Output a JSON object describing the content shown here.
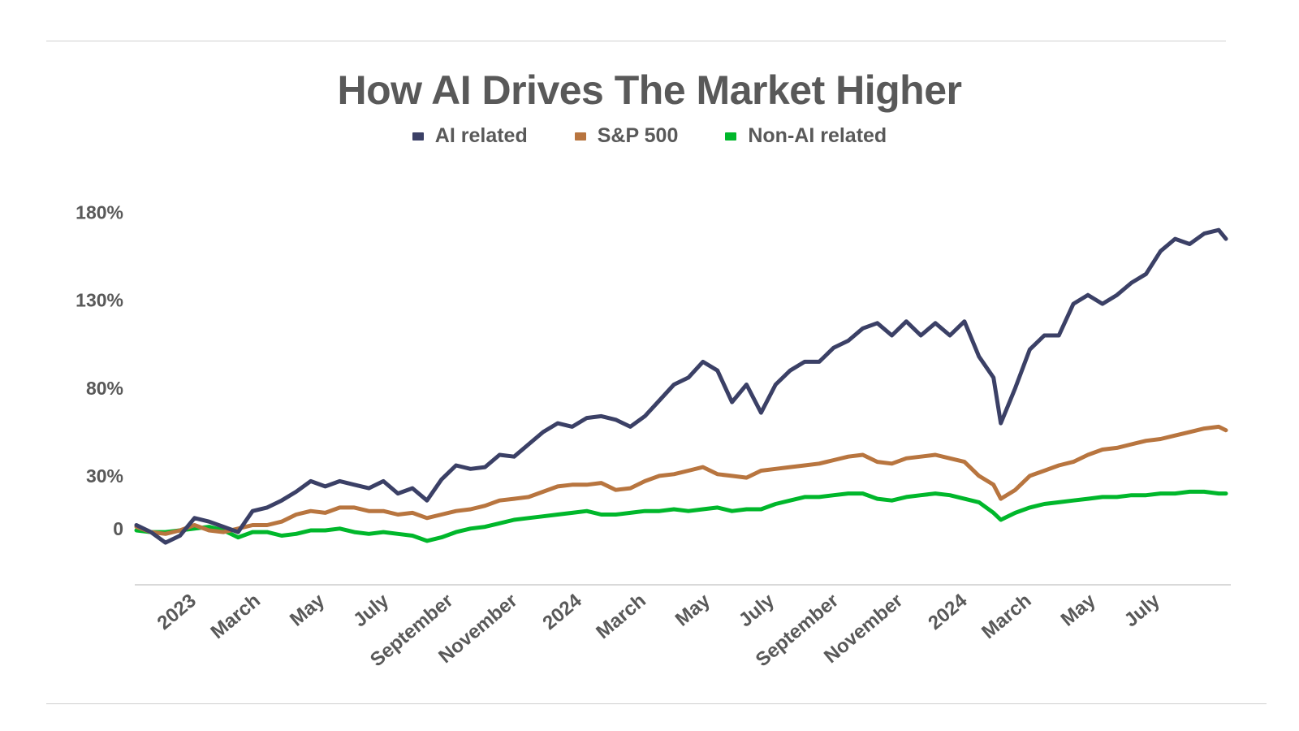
{
  "chart_data": {
    "type": "line",
    "title": "How AI Drives The Market Higher",
    "xlabel": "",
    "ylabel": "",
    "ylim": [
      -32,
      190
    ],
    "y_ticks": [
      "0",
      "30%",
      "80%",
      "130%",
      "180%"
    ],
    "y_tick_values": [
      0,
      30,
      80,
      130,
      180
    ],
    "x_tick_labels": [
      "2023",
      "March",
      "May",
      "July",
      "September",
      "November",
      "2024",
      "March",
      "May",
      "July",
      "September",
      "November",
      "2024",
      "March",
      "May",
      "July"
    ],
    "grid": false,
    "legend_position": "top",
    "x": [
      "2022-12-30",
      "2023-01-13",
      "2023-01-27",
      "2023-02-10",
      "2023-02-24",
      "2023-03-10",
      "2023-03-24",
      "2023-04-07",
      "2023-04-21",
      "2023-05-05",
      "2023-05-19",
      "2023-06-02",
      "2023-06-16",
      "2023-06-30",
      "2023-07-14",
      "2023-07-28",
      "2023-08-11",
      "2023-08-25",
      "2023-09-08",
      "2023-09-22",
      "2023-10-06",
      "2023-10-20",
      "2023-11-03",
      "2023-11-17",
      "2023-12-01",
      "2023-12-15",
      "2023-12-29",
      "2024-01-12",
      "2024-01-26",
      "2024-02-09",
      "2024-02-23",
      "2024-03-08",
      "2024-03-22",
      "2024-04-05",
      "2024-04-19",
      "2024-05-03",
      "2024-05-17",
      "2024-05-31",
      "2024-06-14",
      "2024-06-28",
      "2024-07-12",
      "2024-07-26",
      "2024-08-09",
      "2024-08-23",
      "2024-09-06",
      "2024-09-20",
      "2024-10-04",
      "2024-10-18",
      "2024-11-01",
      "2024-11-15",
      "2024-11-29",
      "2024-12-13",
      "2024-12-27",
      "2025-01-10",
      "2025-01-24",
      "2025-02-07",
      "2025-02-21",
      "2025-03-07",
      "2025-03-21",
      "2025-04-04",
      "2025-04-11",
      "2025-04-25",
      "2025-05-09",
      "2025-05-23",
      "2025-06-06",
      "2025-06-20",
      "2025-07-04",
      "2025-07-18",
      "2025-08-01",
      "2025-08-15",
      "2025-08-29",
      "2025-09-12",
      "2025-09-26",
      "2025-10-10",
      "2025-10-24",
      "2025-11-07",
      "2025-11-14"
    ],
    "series": [
      {
        "name": "AI related",
        "color": "#3b4066",
        "values": [
          2,
          -2,
          -8,
          -4,
          6,
          4,
          1,
          -2,
          10,
          12,
          16,
          21,
          27,
          24,
          27,
          25,
          23,
          27,
          20,
          23,
          16,
          28,
          36,
          34,
          35,
          42,
          41,
          48,
          55,
          60,
          58,
          63,
          64,
          62,
          58,
          64,
          73,
          82,
          86,
          95,
          90,
          72,
          82,
          66,
          82,
          90,
          95,
          95,
          103,
          107,
          114,
          117,
          110,
          118,
          110,
          117,
          110,
          118,
          98,
          86,
          60,
          80,
          102,
          110,
          110,
          128,
          133,
          128,
          133,
          140,
          145,
          158,
          165,
          162,
          168,
          170,
          165
        ]
      },
      {
        "name": "S&P 500",
        "color": "#b8753f",
        "values": [
          1,
          -2,
          -3,
          -1,
          2,
          -1,
          -2,
          0,
          2,
          2,
          4,
          8,
          10,
          9,
          12,
          12,
          10,
          10,
          8,
          9,
          6,
          8,
          10,
          11,
          13,
          16,
          17,
          18,
          21,
          24,
          25,
          25,
          26,
          22,
          23,
          27,
          30,
          31,
          33,
          35,
          31,
          30,
          29,
          33,
          34,
          35,
          36,
          37,
          39,
          41,
          42,
          38,
          37,
          40,
          41,
          42,
          40,
          38,
          30,
          25,
          17,
          22,
          30,
          33,
          36,
          38,
          42,
          45,
          46,
          48,
          50,
          51,
          53,
          55,
          57,
          58,
          56
        ]
      },
      {
        "name": "Non-AI related",
        "color": "#00b72b",
        "values": [
          -1,
          -2,
          -2,
          -1,
          0,
          1,
          -1,
          -5,
          -2,
          -2,
          -4,
          -3,
          -1,
          -1,
          0,
          -2,
          -3,
          -2,
          -3,
          -4,
          -7,
          -5,
          -2,
          0,
          1,
          3,
          5,
          6,
          7,
          8,
          9,
          10,
          8,
          8,
          9,
          10,
          10,
          11,
          10,
          11,
          12,
          10,
          11,
          11,
          14,
          16,
          18,
          18,
          19,
          20,
          20,
          17,
          16,
          18,
          19,
          20,
          19,
          17,
          15,
          9,
          5,
          9,
          12,
          14,
          15,
          16,
          17,
          18,
          18,
          19,
          19,
          20,
          20,
          21,
          21,
          20,
          20
        ]
      }
    ]
  }
}
